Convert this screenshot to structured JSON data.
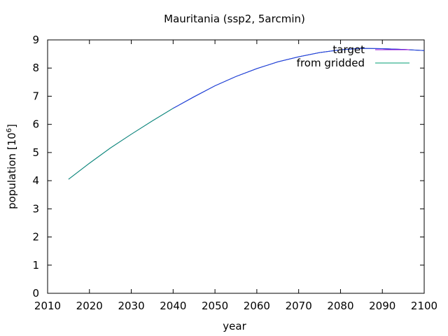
{
  "chart_data": {
    "type": "line",
    "title": "Mauritania (ssp2, 5arcmin)",
    "xlabel": "year",
    "ylabel": "population [10",
    "ylabel_sup": "6",
    "ylabel_tail": "]",
    "xlim": [
      2010,
      2100
    ],
    "ylim": [
      0,
      9
    ],
    "xticks": [
      2010,
      2020,
      2030,
      2040,
      2050,
      2060,
      2070,
      2080,
      2090,
      2100
    ],
    "yticks": [
      0,
      1,
      2,
      3,
      4,
      5,
      6,
      7,
      8,
      9
    ],
    "grid": false,
    "legend_position": "top-right",
    "x": [
      2015,
      2020,
      2025,
      2030,
      2035,
      2040,
      2045,
      2050,
      2055,
      2060,
      2065,
      2070,
      2075,
      2080,
      2085,
      2090,
      2095,
      2100
    ],
    "series": [
      {
        "name": "target",
        "color": "#9400d3",
        "values": [
          4.05,
          4.62,
          5.16,
          5.65,
          6.12,
          6.57,
          6.98,
          7.37,
          7.7,
          7.98,
          8.22,
          8.4,
          8.55,
          8.65,
          8.7,
          8.69,
          8.66,
          8.62
        ]
      },
      {
        "name": "from gridded",
        "color": "#009e73",
        "values": [
          4.05,
          4.62,
          5.16,
          5.65,
          6.12,
          6.57,
          6.98,
          7.37,
          7.7,
          7.98,
          8.22,
          8.4,
          8.55,
          8.65,
          8.7,
          8.69,
          8.66,
          8.62
        ]
      }
    ],
    "overlay_color": "#2a2aff"
  }
}
